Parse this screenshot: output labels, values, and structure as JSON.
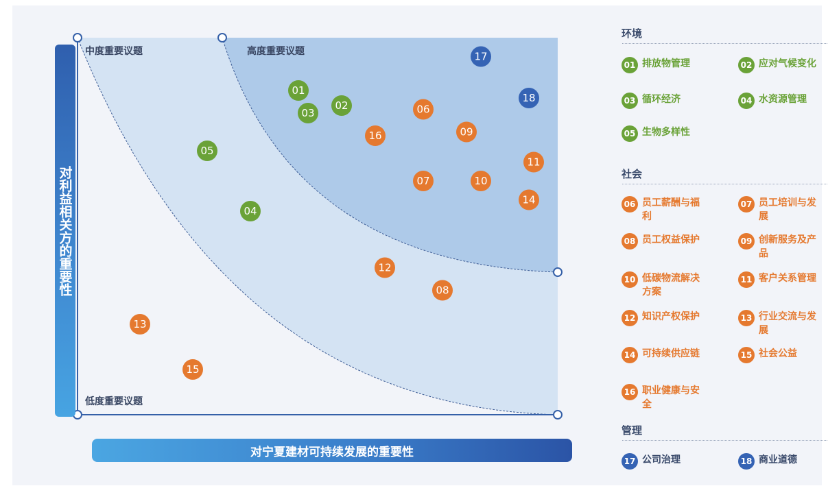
{
  "chart_data": {
    "type": "scatter",
    "xlabel": "对宁夏建材可持续发展的重要性",
    "ylabel": "对利益相关方的重要性",
    "zones": [
      {
        "label": "低度重要议题"
      },
      {
        "label": "中度重要议题"
      },
      {
        "label": "高度重要议题"
      }
    ],
    "points": [
      {
        "id": "01",
        "x": 46,
        "y": 86,
        "category": "环境"
      },
      {
        "id": "02",
        "x": 55,
        "y": 82,
        "category": "环境"
      },
      {
        "id": "03",
        "x": 48,
        "y": 80,
        "category": "环境"
      },
      {
        "id": "04",
        "x": 36,
        "y": 54,
        "category": "环境"
      },
      {
        "id": "05",
        "x": 27,
        "y": 70,
        "category": "环境"
      },
      {
        "id": "06",
        "x": 72,
        "y": 81,
        "category": "社会"
      },
      {
        "id": "07",
        "x": 72,
        "y": 62,
        "category": "社会"
      },
      {
        "id": "08",
        "x": 76,
        "y": 33,
        "category": "社会"
      },
      {
        "id": "09",
        "x": 81,
        "y": 75,
        "category": "社会"
      },
      {
        "id": "10",
        "x": 84,
        "y": 62,
        "category": "社会"
      },
      {
        "id": "11",
        "x": 95,
        "y": 67,
        "category": "社会"
      },
      {
        "id": "12",
        "x": 64,
        "y": 39,
        "category": "社会"
      },
      {
        "id": "13",
        "x": 13,
        "y": 24,
        "category": "社会"
      },
      {
        "id": "14",
        "x": 94,
        "y": 57,
        "category": "社会"
      },
      {
        "id": "15",
        "x": 24,
        "y": 12,
        "category": "社会"
      },
      {
        "id": "16",
        "x": 62,
        "y": 74,
        "category": "社会"
      },
      {
        "id": "17",
        "x": 84,
        "y": 95,
        "category": "管理"
      },
      {
        "id": "18",
        "x": 94,
        "y": 84,
        "category": "管理"
      }
    ],
    "colors": {
      "环境": "#6aa238",
      "社会": "#e5792f",
      "管理": "#3563b4"
    }
  },
  "legend": {
    "categories": [
      {
        "name": "环境",
        "items": [
          {
            "id": "01",
            "label": "排放物管理"
          },
          {
            "id": "02",
            "label": "应对气候变化"
          },
          {
            "id": "03",
            "label": "循环经济"
          },
          {
            "id": "04",
            "label": "水资源管理"
          },
          {
            "id": "05",
            "label": "生物多样性"
          }
        ]
      },
      {
        "name": "社会",
        "items": [
          {
            "id": "06",
            "label": "员工薪酬与福利"
          },
          {
            "id": "07",
            "label": "员工培训与发展"
          },
          {
            "id": "08",
            "label": "员工权益保护"
          },
          {
            "id": "09",
            "label": "创新服务及产品"
          },
          {
            "id": "10",
            "label": "低碳物流解决方案"
          },
          {
            "id": "11",
            "label": "客户关系管理"
          },
          {
            "id": "12",
            "label": "知识产权保护"
          },
          {
            "id": "13",
            "label": "行业交流与发展"
          },
          {
            "id": "14",
            "label": "可持续供应链"
          },
          {
            "id": "15",
            "label": "社会公益"
          },
          {
            "id": "16",
            "label": "职业健康与安全"
          }
        ]
      },
      {
        "name": "管理",
        "items": [
          {
            "id": "17",
            "label": "公司治理"
          },
          {
            "id": "18",
            "label": "商业道德"
          }
        ]
      }
    ]
  }
}
